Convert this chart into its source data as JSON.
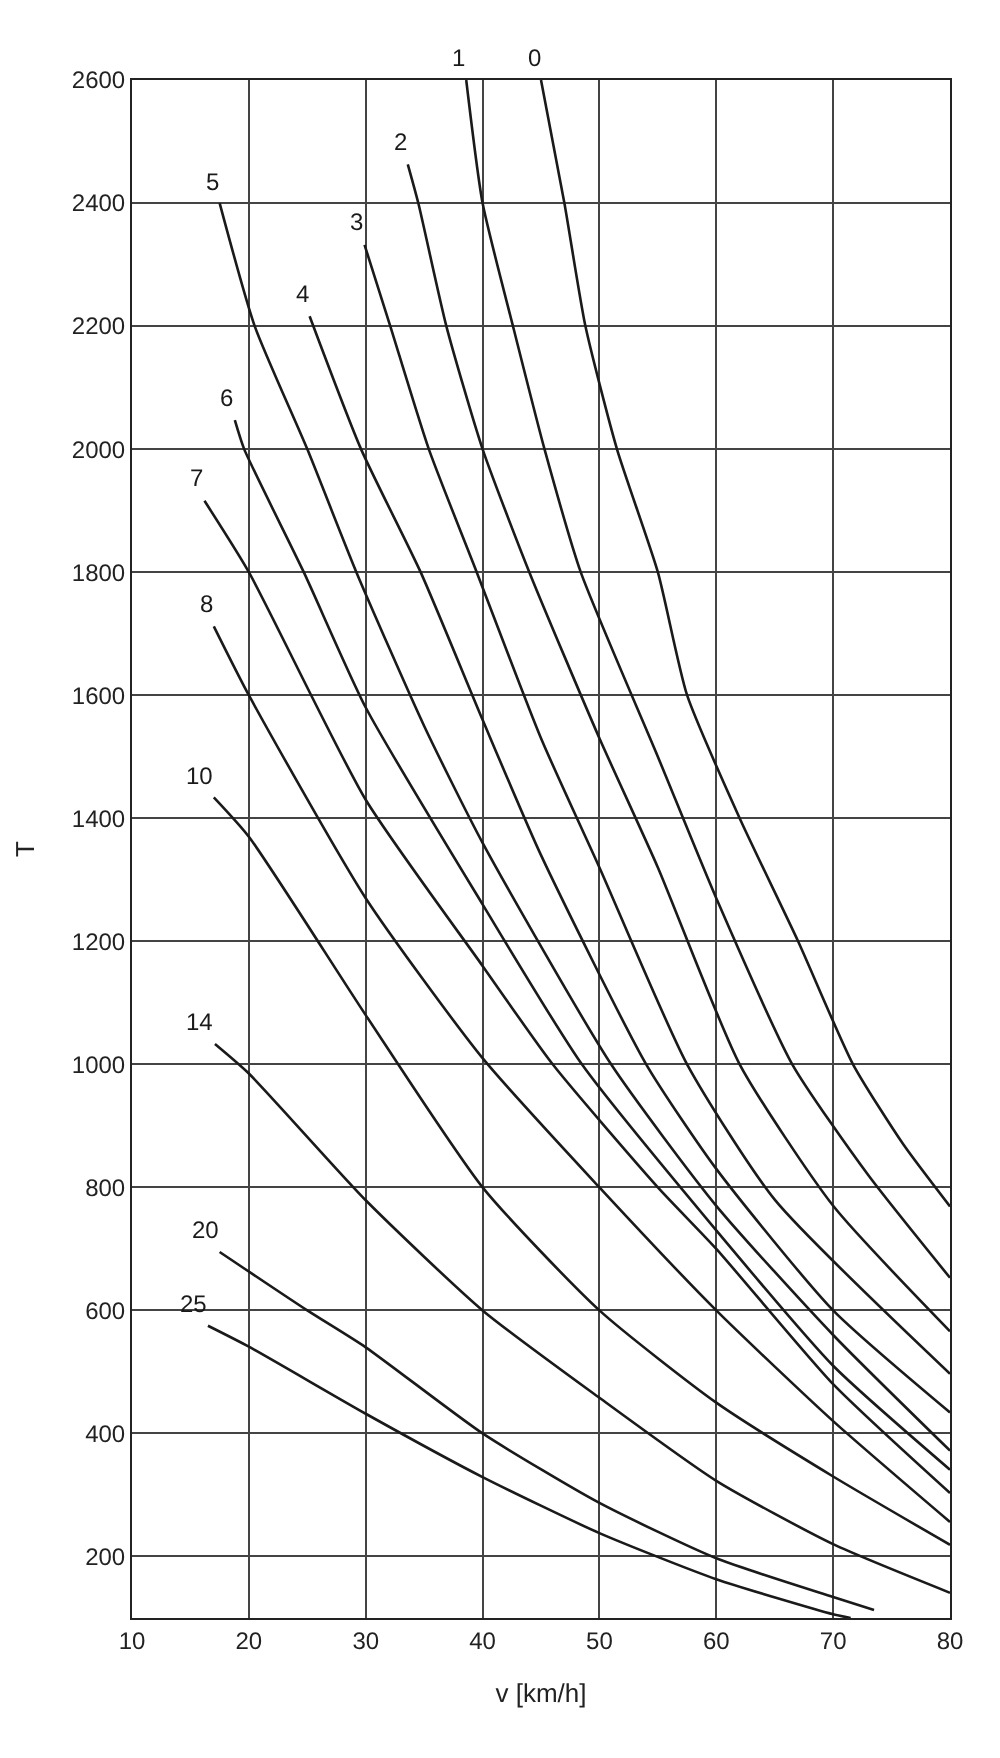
{
  "chart_data": {
    "type": "line",
    "xlabel": "v [km/h]",
    "ylabel": "T",
    "xlim": [
      10,
      80
    ],
    "ylim": [
      100,
      2600
    ],
    "xticks": [
      10,
      20,
      30,
      40,
      50,
      60,
      70,
      80
    ],
    "yticks": [
      200,
      400,
      600,
      800,
      1000,
      1200,
      1400,
      1600,
      1800,
      2000,
      2200,
      2400,
      2600
    ],
    "grid": true,
    "legend": false,
    "marker": "none",
    "line_style": "solid",
    "series": [
      {
        "name": "0",
        "color": "#1a1a1a",
        "x": [
          45,
          47,
          48.8,
          51.5,
          55,
          57.5,
          62,
          67,
          71.7,
          76,
          80
        ],
        "values": [
          2600,
          2400,
          2200,
          2000,
          1800,
          1600,
          1400,
          1200,
          1000,
          870,
          769
        ]
      },
      {
        "name": "1",
        "color": "#1a1a1a",
        "x": [
          38.6,
          40,
          42.6,
          45.3,
          48.4,
          55,
          60,
          66.5,
          73,
          80
        ],
        "values": [
          2600,
          2400,
          2200,
          2000,
          1800,
          1500,
          1270,
          1000,
          820,
          653
        ]
      },
      {
        "name": "2",
        "color": "#1a1a1a",
        "x": [
          33.6,
          34.5,
          36.9,
          40,
          44,
          50,
          55,
          62,
          70,
          80
        ],
        "values": [
          2463,
          2400,
          2200,
          2000,
          1800,
          1530,
          1320,
          1000,
          770,
          566
        ]
      },
      {
        "name": "3",
        "color": "#1a1a1a",
        "x": [
          29.9,
          32.1,
          35.4,
          39.5,
          45,
          50,
          57.5,
          65,
          80
        ],
        "values": [
          2332,
          2200,
          2000,
          1800,
          1530,
          1320,
          1000,
          780,
          497
        ]
      },
      {
        "name": "4",
        "color": "#1a1a1a",
        "x": [
          25.2,
          29.6,
          34.7,
          40,
          45,
          54,
          60,
          70,
          80
        ],
        "values": [
          2216,
          2000,
          1800,
          1560,
          1340,
          1000,
          830,
          600,
          434
        ]
      },
      {
        "name": "5",
        "color": "#1a1a1a",
        "x": [
          17.5,
          20.5,
          25,
          29.2,
          35,
          40,
          51,
          60,
          70,
          80
        ],
        "values": [
          2400,
          2200,
          2000,
          1800,
          1550,
          1360,
          1000,
          770,
          560,
          372
        ]
      },
      {
        "name": "6",
        "color": "#1a1a1a",
        "x": [
          18.8,
          19.6,
          24.7,
          30,
          40,
          48.5,
          60,
          70,
          80
        ],
        "values": [
          2047,
          2000,
          1800,
          1580,
          1260,
          1000,
          730,
          510,
          341
        ]
      },
      {
        "name": "7",
        "color": "#1a1a1a",
        "x": [
          16.2,
          20,
          30,
          40,
          46,
          55,
          60,
          70,
          80
        ],
        "values": [
          1916,
          1800,
          1430,
          1160,
          1000,
          800,
          700,
          480,
          303
        ]
      },
      {
        "name": "8",
        "color": "#1a1a1a",
        "x": [
          17,
          20,
          30,
          40,
          50,
          60,
          70,
          80
        ],
        "values": [
          1712,
          1600,
          1270,
          1010,
          800,
          600,
          420,
          256
        ]
      },
      {
        "name": "10",
        "color": "#1a1a1a",
        "x": [
          17,
          20,
          30,
          40,
          50,
          60,
          70,
          80
        ],
        "values": [
          1434,
          1370,
          1080,
          800,
          600,
          450,
          330,
          219
        ]
      },
      {
        "name": "14",
        "color": "#1a1a1a",
        "x": [
          17.1,
          20,
          30,
          40,
          50,
          60,
          70,
          80
        ],
        "values": [
          1033,
          985,
          779,
          600,
          458,
          323,
          220,
          141
        ]
      },
      {
        "name": "20",
        "color": "#1a1a1a",
        "x": [
          17.5,
          25,
          30,
          40,
          50,
          60,
          70,
          73.5
        ],
        "values": [
          695,
          600,
          540,
          400,
          287,
          197,
          134,
          113
        ]
      },
      {
        "name": "25",
        "color": "#1a1a1a",
        "x": [
          16.5,
          20,
          30,
          40,
          50,
          60,
          70,
          71.5
        ],
        "values": [
          575,
          541,
          432,
          329,
          238,
          163,
          106,
          100
        ]
      }
    ]
  }
}
